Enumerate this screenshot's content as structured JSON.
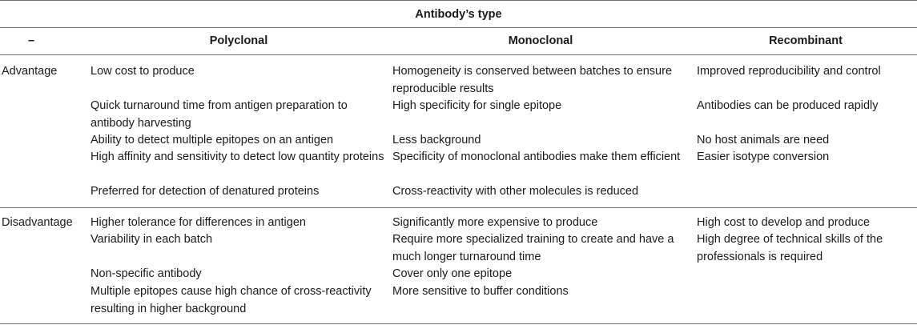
{
  "table": {
    "group_header": "Antibody’s type",
    "columns": [
      "–",
      "Polyclonal",
      "Monoclonal",
      "Recombinant"
    ],
    "rows": [
      {
        "label": "Advantage",
        "polyclonal": [
          "Low cost to produce",
          "Quick turnaround time from antigen preparation to antibody harvesting",
          "Ability to detect multiple epitopes on an antigen",
          "High affinity and sensitivity to detect low quantity proteins",
          "Preferred for detection of denatured proteins"
        ],
        "monoclonal": [
          "Homogeneity is conserved between batches to ensure reproducible results",
          "High specificity for single epitope",
          "Less background",
          "Specificity of monoclonal antibodies make them efficient",
          "Cross-reactivity with other molecules is reduced"
        ],
        "recombinant": [
          "Improved reproducibility and control",
          "Antibodies can be produced rapidly",
          "No host animals are need",
          "Easier isotype conversion"
        ]
      },
      {
        "label": "Disadvantage",
        "polyclonal": [
          "Higher tolerance for differences in antigen",
          "Variability in each batch",
          "Non-specific antibody",
          "Multiple epitopes cause high chance of cross-reactivity resulting in higher background"
        ],
        "monoclonal": [
          "Significantly more expensive to produce",
          "Require more specialized training to create and have a much longer turnaround time",
          "Cover only one epitope",
          "More sensitive to buffer conditions"
        ],
        "recombinant": [
          "High cost to develop and produce",
          "High degree of technical skills of the professionals is required"
        ]
      }
    ]
  }
}
